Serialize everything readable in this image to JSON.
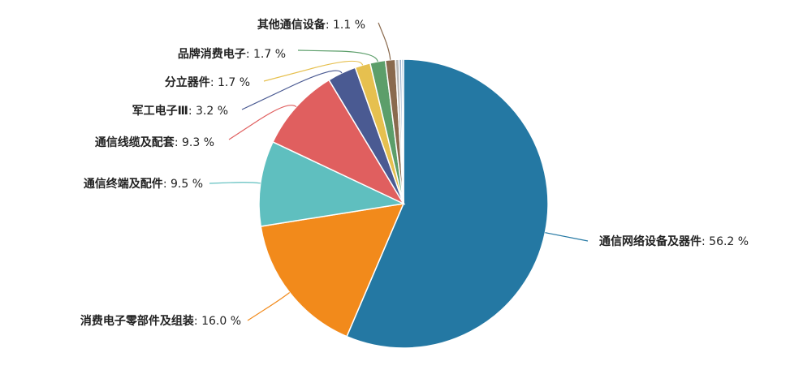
{
  "chart_data": {
    "type": "pie",
    "unit": "%",
    "slices": [
      {
        "name": "通信网络设备及器件",
        "value": 56.2,
        "display": "56.2",
        "color": "#2478a3"
      },
      {
        "name": "消费电子零部件及组装",
        "value": 16.0,
        "display": "16.0",
        "color": "#f28a1b"
      },
      {
        "name": "通信终端及配件",
        "value": 9.5,
        "display": "9.5",
        "color": "#5fbfbf"
      },
      {
        "name": "通信线缆及配套",
        "value": 9.3,
        "display": "9.3",
        "color": "#e05f5f"
      },
      {
        "name": "军工电子Ⅲ",
        "value": 3.2,
        "display": "3.2",
        "color": "#4a5a92"
      },
      {
        "name": "分立器件",
        "value": 1.7,
        "display": "1.7",
        "color": "#e6c04f"
      },
      {
        "name": "品牌消费电子",
        "value": 1.7,
        "display": "1.7",
        "color": "#5c9e6a"
      },
      {
        "name": "其他通信设备",
        "value": 1.1,
        "display": "1.1",
        "color": "#8a6a4e"
      },
      {
        "name": "",
        "value": 0.4,
        "display": "",
        "color": "#b8b8b8"
      },
      {
        "name": "",
        "value": 0.3,
        "display": "",
        "color": "#9fb4cf"
      },
      {
        "name": "",
        "value": 0.2,
        "display": "",
        "color": "#6f9fc8"
      }
    ],
    "legend": "none"
  }
}
